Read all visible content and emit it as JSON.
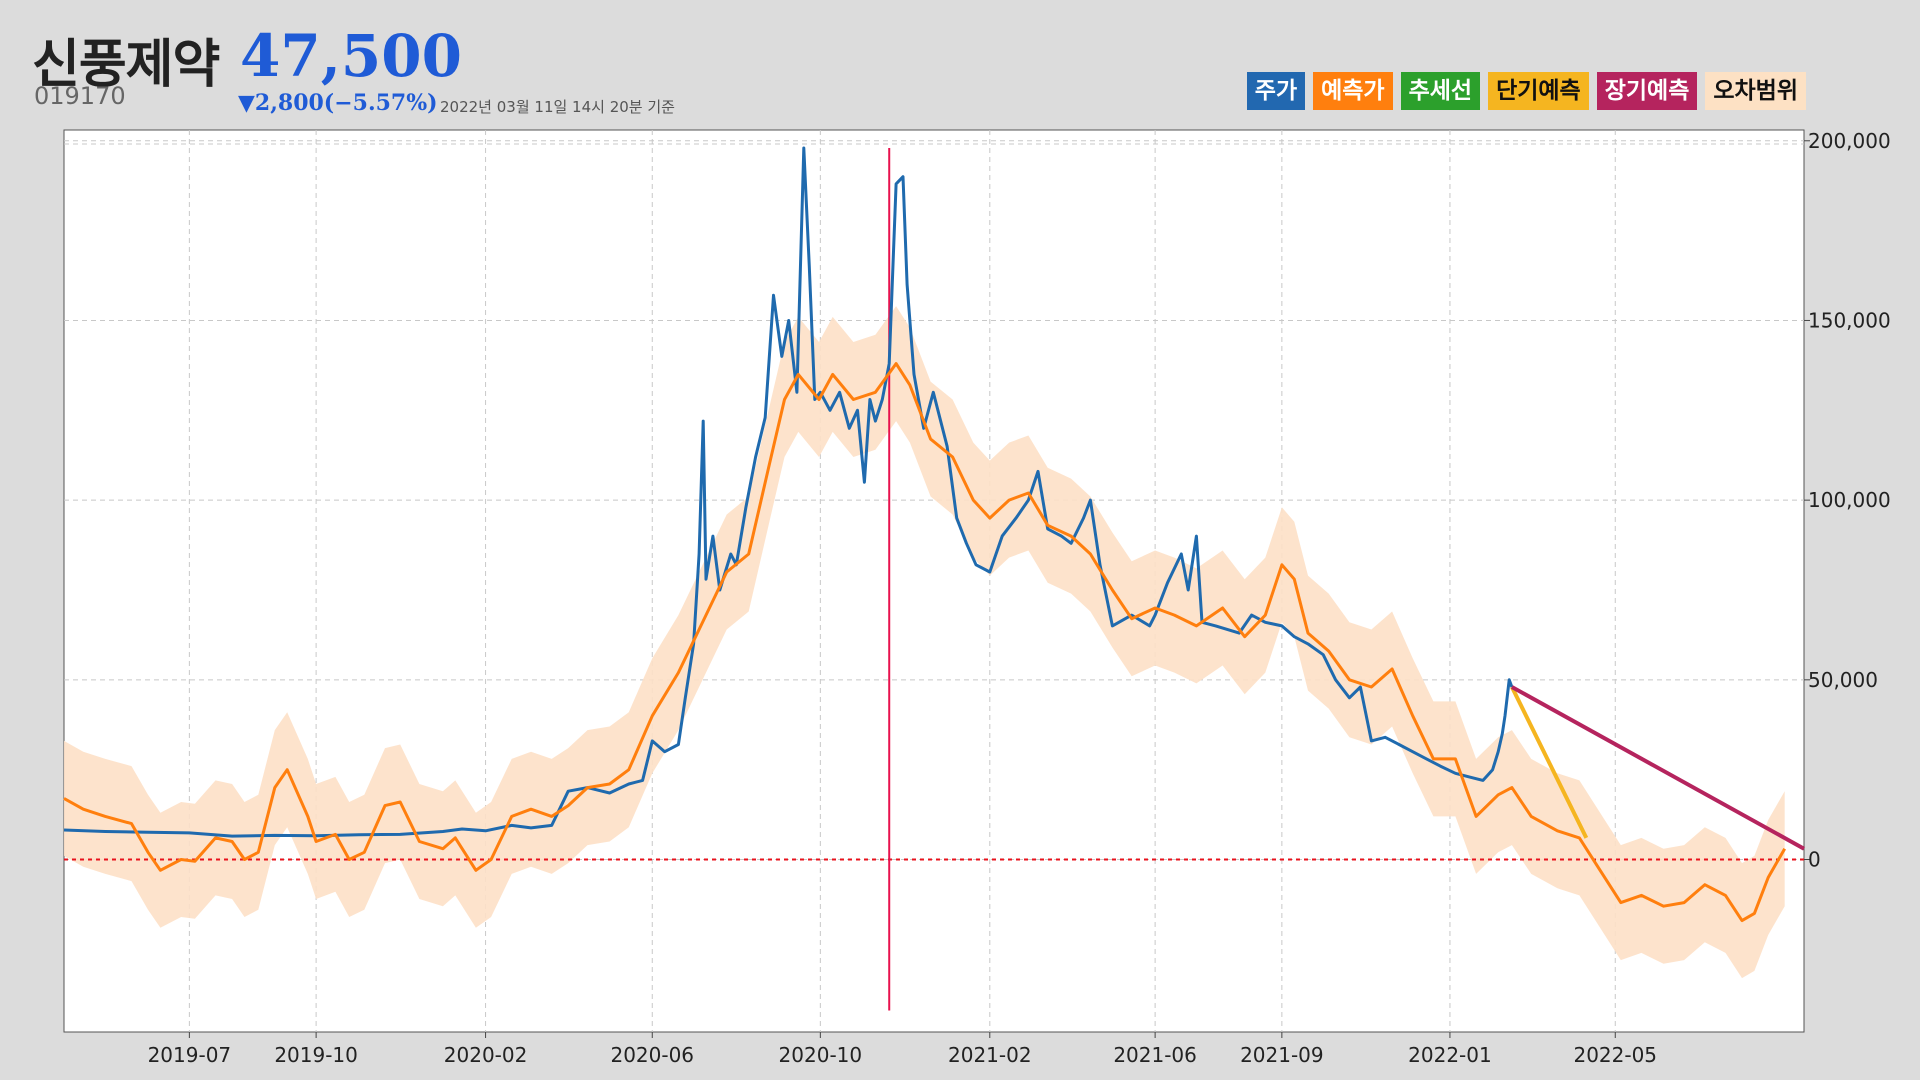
{
  "header": {
    "company_name": "신풍제약",
    "price": "47,500",
    "code": "019170",
    "change": "▼2,800(−5.57%)",
    "timestamp": "2022년 03월 11일 14시 20분 기준"
  },
  "legend": [
    {
      "label": "주가",
      "bg": "#2268b0",
      "fg": "#ffffff"
    },
    {
      "label": "예측가",
      "bg": "#ff7f0e",
      "fg": "#ffffff"
    },
    {
      "label": "추세선",
      "bg": "#2ca02c",
      "fg": "#ffffff"
    },
    {
      "label": "단기예측",
      "bg": "#f5b520",
      "fg": "#111111"
    },
    {
      "label": "장기예측",
      "bg": "#b5245e",
      "fg": "#ffffff"
    },
    {
      "label": "오차범위",
      "bg": "#fde1c4",
      "fg": "#111111"
    }
  ],
  "colors": {
    "price": "#1f6aae",
    "forecast": "#ff7f0e",
    "band": "#fde0c6",
    "short": "#f5b520",
    "long": "#b5245e",
    "zero_line": "#e8111b",
    "marker": "#e8114d"
  },
  "chart_data": {
    "type": "line",
    "x_range": [
      "2019-04-01",
      "2022-09-15"
    ],
    "ylim": [
      -48000,
      203000
    ],
    "y_ticks": [
      0,
      50000,
      100000,
      150000,
      200000
    ],
    "y_tick_labels": [
      "0",
      "50,000",
      "100,000",
      "150,000",
      "200,000"
    ],
    "x_ticks": [
      "2019-07-01",
      "2019-10-01",
      "2020-02-01",
      "2020-06-01",
      "2020-10-01",
      "2021-02-01",
      "2021-06-01",
      "2021-09-01",
      "2022-01-01",
      "2022-05-01"
    ],
    "x_tick_labels": [
      "2019-07",
      "2019-10",
      "2020-02",
      "2020-06",
      "2020-10",
      "2021-02",
      "2021-06",
      "2021-09",
      "2022-01",
      "2022-05"
    ],
    "grid": true,
    "zero_line": 0,
    "vertical_marker": {
      "x": "2020-11-20",
      "y_range": [
        -42000,
        198000
      ]
    },
    "series": [
      {
        "name": "주가",
        "points": [
          [
            "2019-04-01",
            8200
          ],
          [
            "2019-05-01",
            7800
          ],
          [
            "2019-06-01",
            7600
          ],
          [
            "2019-07-01",
            7400
          ],
          [
            "2019-08-01",
            6500
          ],
          [
            "2019-09-01",
            6700
          ],
          [
            "2019-10-01",
            6600
          ],
          [
            "2019-11-01",
            6900
          ],
          [
            "2019-12-01",
            7000
          ],
          [
            "2020-01-01",
            7800
          ],
          [
            "2020-01-15",
            8500
          ],
          [
            "2020-02-01",
            8000
          ],
          [
            "2020-02-20",
            9500
          ],
          [
            "2020-03-05",
            8800
          ],
          [
            "2020-03-20",
            9500
          ],
          [
            "2020-04-01",
            19000
          ],
          [
            "2020-04-15",
            20000
          ],
          [
            "2020-05-01",
            18500
          ],
          [
            "2020-05-15",
            21000
          ],
          [
            "2020-05-25",
            22000
          ],
          [
            "2020-06-01",
            33000
          ],
          [
            "2020-06-10",
            30000
          ],
          [
            "2020-06-20",
            32000
          ],
          [
            "2020-06-25",
            45000
          ],
          [
            "2020-07-01",
            60000
          ],
          [
            "2020-07-05",
            85000
          ],
          [
            "2020-07-08",
            122000
          ],
          [
            "2020-07-10",
            78000
          ],
          [
            "2020-07-15",
            90000
          ],
          [
            "2020-07-20",
            75000
          ],
          [
            "2020-07-28",
            85000
          ],
          [
            "2020-08-01",
            82000
          ],
          [
            "2020-08-08",
            98000
          ],
          [
            "2020-08-15",
            112000
          ],
          [
            "2020-08-22",
            123000
          ],
          [
            "2020-08-28",
            157000
          ],
          [
            "2020-09-03",
            140000
          ],
          [
            "2020-09-08",
            150000
          ],
          [
            "2020-09-14",
            130000
          ],
          [
            "2020-09-19",
            198000
          ],
          [
            "2020-09-23",
            165000
          ],
          [
            "2020-09-27",
            128000
          ],
          [
            "2020-10-01",
            130000
          ],
          [
            "2020-10-08",
            125000
          ],
          [
            "2020-10-15",
            130000
          ],
          [
            "2020-10-22",
            120000
          ],
          [
            "2020-10-28",
            125000
          ],
          [
            "2020-11-02",
            105000
          ],
          [
            "2020-11-06",
            128000
          ],
          [
            "2020-11-10",
            122000
          ],
          [
            "2020-11-15",
            128000
          ],
          [
            "2020-11-20",
            138000
          ],
          [
            "2020-11-25",
            188000
          ],
          [
            "2020-11-30",
            190000
          ],
          [
            "2020-12-03",
            160000
          ],
          [
            "2020-12-08",
            135000
          ],
          [
            "2020-12-15",
            120000
          ],
          [
            "2020-12-22",
            130000
          ],
          [
            "2021-01-01",
            115000
          ],
          [
            "2021-01-08",
            95000
          ],
          [
            "2021-01-15",
            88000
          ],
          [
            "2021-01-22",
            82000
          ],
          [
            "2021-02-01",
            80000
          ],
          [
            "2021-02-10",
            90000
          ],
          [
            "2021-02-20",
            95000
          ],
          [
            "2021-03-01",
            100000
          ],
          [
            "2021-03-08",
            108000
          ],
          [
            "2021-03-15",
            92000
          ],
          [
            "2021-03-25",
            90000
          ],
          [
            "2021-04-01",
            88000
          ],
          [
            "2021-04-10",
            95000
          ],
          [
            "2021-04-15",
            100000
          ],
          [
            "2021-04-22",
            82000
          ],
          [
            "2021-05-01",
            65000
          ],
          [
            "2021-05-15",
            68000
          ],
          [
            "2021-05-28",
            65000
          ],
          [
            "2021-06-01",
            68000
          ],
          [
            "2021-06-10",
            77000
          ],
          [
            "2021-06-20",
            85000
          ],
          [
            "2021-06-25",
            75000
          ],
          [
            "2021-07-01",
            90000
          ],
          [
            "2021-07-05",
            66000
          ],
          [
            "2021-07-15",
            65000
          ],
          [
            "2021-08-01",
            63000
          ],
          [
            "2021-08-10",
            68000
          ],
          [
            "2021-08-20",
            66000
          ],
          [
            "2021-09-01",
            65000
          ],
          [
            "2021-09-10",
            62000
          ],
          [
            "2021-09-20",
            60000
          ],
          [
            "2021-10-01",
            57000
          ],
          [
            "2021-10-10",
            50000
          ],
          [
            "2021-10-20",
            45000
          ],
          [
            "2021-10-28",
            48000
          ],
          [
            "2021-11-05",
            33000
          ],
          [
            "2021-11-15",
            34000
          ],
          [
            "2021-11-25",
            32000
          ],
          [
            "2021-12-05",
            30000
          ],
          [
            "2021-12-15",
            28000
          ],
          [
            "2021-12-25",
            26000
          ],
          [
            "2022-01-05",
            24000
          ],
          [
            "2022-01-15",
            23000
          ],
          [
            "2022-01-25",
            22000
          ],
          [
            "2022-02-01",
            25000
          ],
          [
            "2022-02-05",
            30000
          ],
          [
            "2022-02-08",
            35000
          ],
          [
            "2022-02-10",
            40000
          ],
          [
            "2022-02-13",
            50000
          ],
          [
            "2022-02-15",
            48000
          ]
        ]
      },
      {
        "name": "예측가",
        "points": [
          [
            "2019-04-01",
            17000
          ],
          [
            "2019-04-15",
            14000
          ],
          [
            "2019-05-01",
            12000
          ],
          [
            "2019-05-20",
            10000
          ],
          [
            "2019-06-01",
            2000
          ],
          [
            "2019-06-10",
            -3000
          ],
          [
            "2019-06-25",
            0
          ],
          [
            "2019-07-05",
            -500
          ],
          [
            "2019-07-20",
            6000
          ],
          [
            "2019-08-01",
            5000
          ],
          [
            "2019-08-10",
            0
          ],
          [
            "2019-08-20",
            2000
          ],
          [
            "2019-09-01",
            20000
          ],
          [
            "2019-09-10",
            25000
          ],
          [
            "2019-09-25",
            12000
          ],
          [
            "2019-10-01",
            5000
          ],
          [
            "2019-10-15",
            7000
          ],
          [
            "2019-10-25",
            0
          ],
          [
            "2019-11-05",
            2000
          ],
          [
            "2019-11-20",
            15000
          ],
          [
            "2019-12-01",
            16000
          ],
          [
            "2019-12-15",
            5000
          ],
          [
            "2020-01-01",
            3000
          ],
          [
            "2020-01-10",
            6000
          ],
          [
            "2020-01-25",
            -3000
          ],
          [
            "2020-02-05",
            0
          ],
          [
            "2020-02-20",
            12000
          ],
          [
            "2020-03-05",
            14000
          ],
          [
            "2020-03-20",
            12000
          ],
          [
            "2020-04-01",
            15000
          ],
          [
            "2020-04-15",
            20000
          ],
          [
            "2020-05-01",
            21000
          ],
          [
            "2020-05-15",
            25000
          ],
          [
            "2020-06-01",
            40000
          ],
          [
            "2020-06-20",
            52000
          ],
          [
            "2020-07-10",
            68000
          ],
          [
            "2020-07-25",
            80000
          ],
          [
            "2020-08-10",
            85000
          ],
          [
            "2020-08-25",
            110000
          ],
          [
            "2020-09-05",
            128000
          ],
          [
            "2020-09-15",
            135000
          ],
          [
            "2020-09-30",
            128000
          ],
          [
            "2020-10-10",
            135000
          ],
          [
            "2020-10-25",
            128000
          ],
          [
            "2020-11-10",
            130000
          ],
          [
            "2020-11-25",
            138000
          ],
          [
            "2020-12-05",
            132000
          ],
          [
            "2020-12-20",
            117000
          ],
          [
            "2021-01-05",
            112000
          ],
          [
            "2021-01-20",
            100000
          ],
          [
            "2021-02-01",
            95000
          ],
          [
            "2021-02-15",
            100000
          ],
          [
            "2021-03-01",
            102000
          ],
          [
            "2021-03-15",
            93000
          ],
          [
            "2021-04-01",
            90000
          ],
          [
            "2021-04-15",
            85000
          ],
          [
            "2021-05-01",
            75000
          ],
          [
            "2021-05-15",
            67000
          ],
          [
            "2021-06-01",
            70000
          ],
          [
            "2021-06-15",
            68000
          ],
          [
            "2021-07-01",
            65000
          ],
          [
            "2021-07-20",
            70000
          ],
          [
            "2021-08-05",
            62000
          ],
          [
            "2021-08-20",
            68000
          ],
          [
            "2021-09-01",
            82000
          ],
          [
            "2021-09-10",
            78000
          ],
          [
            "2021-09-20",
            63000
          ],
          [
            "2021-10-05",
            58000
          ],
          [
            "2021-10-20",
            50000
          ],
          [
            "2021-11-05",
            48000
          ],
          [
            "2021-11-20",
            53000
          ],
          [
            "2021-12-05",
            40000
          ],
          [
            "2021-12-20",
            28000
          ],
          [
            "2022-01-05",
            28000
          ],
          [
            "2022-01-20",
            12000
          ],
          [
            "2022-02-05",
            18000
          ],
          [
            "2022-02-15",
            20000
          ],
          [
            "2022-03-01",
            12000
          ],
          [
            "2022-03-20",
            8000
          ],
          [
            "2022-04-05",
            6000
          ],
          [
            "2022-04-20",
            -3000
          ],
          [
            "2022-05-05",
            -12000
          ],
          [
            "2022-05-20",
            -10000
          ],
          [
            "2022-06-05",
            -13000
          ],
          [
            "2022-06-20",
            -12000
          ],
          [
            "2022-07-05",
            -7000
          ],
          [
            "2022-07-20",
            -10000
          ],
          [
            "2022-08-01",
            -17000
          ],
          [
            "2022-08-10",
            -15000
          ],
          [
            "2022-08-20",
            -5000
          ],
          [
            "2022-09-01",
            3000
          ]
        ]
      },
      {
        "name": "단기예측",
        "points": [
          [
            "2022-02-15",
            48000
          ],
          [
            "2022-04-10",
            6000
          ]
        ]
      },
      {
        "name": "장기예측",
        "points": [
          [
            "2022-02-15",
            48000
          ],
          [
            "2022-09-15",
            3000
          ]
        ]
      }
    ],
    "band_halfwidth": 16000
  }
}
